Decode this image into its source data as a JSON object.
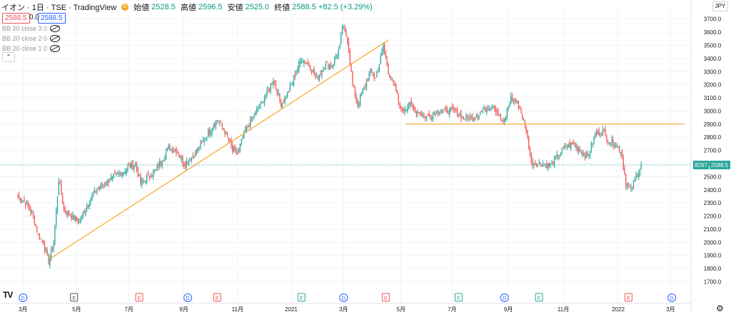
{
  "header": {
    "symbol": "イオン · 1日 · TSE · TradingView",
    "currency_label": "D",
    "ohlc": [
      {
        "k": "始値",
        "v": "2528.5"
      },
      {
        "k": "高値",
        "v": "2596.5"
      },
      {
        "k": "安値",
        "v": "2525.0"
      },
      {
        "k": "終値",
        "v": "2588.5 +82.5 (+3.29%)"
      }
    ],
    "sell_price": "2588.5",
    "spread": "0.0",
    "buy_price": "2588.5"
  },
  "indicators": [
    {
      "label": "BB 20 close 3 0"
    },
    {
      "label": "BB 20 close 2 0"
    },
    {
      "label": "BB 20 close 1 0"
    }
  ],
  "axis": {
    "currency": "JPY",
    "last_volume_tag": "8267",
    "last_price_tag": "2588.5"
  },
  "chart_data": {
    "type": "candlestick",
    "title": "イオン · 1日 · TSE · TradingView",
    "ylim": [
      1670,
      3780
    ],
    "y_ticks": [
      1700,
      1800,
      1900,
      2000,
      2100,
      2200,
      2300,
      2400,
      2500,
      2600,
      2700,
      2800,
      2900,
      3000,
      3100,
      3200,
      3300,
      3400,
      3500,
      3600,
      3700
    ],
    "y_tick_labels": [
      "1700.0",
      "1800.0",
      "1900.0",
      "2000.0",
      "2100.0",
      "2200.0",
      "2300.0",
      "2400.0",
      "2500.0",
      "2600.0",
      "2700.0",
      "2800.0",
      "2900.0",
      "3000.0",
      "3100.0",
      "3200.0",
      "3300.0",
      "3400.0",
      "3500.0",
      "3600.0",
      "3700.0"
    ],
    "x_ticks": [
      {
        "label": "3月",
        "t": 4
      },
      {
        "label": "5月",
        "t": 46
      },
      {
        "label": "7月",
        "t": 87
      },
      {
        "label": "9月",
        "t": 130
      },
      {
        "label": "11月",
        "t": 172
      },
      {
        "label": "2021",
        "t": 214
      },
      {
        "label": "3月",
        "t": 255
      },
      {
        "label": "5月",
        "t": 300
      },
      {
        "label": "7月",
        "t": 340
      },
      {
        "label": "9月",
        "t": 384
      },
      {
        "label": "11月",
        "t": 427
      },
      {
        "label": "2022",
        "t": 470
      },
      {
        "label": "3月",
        "t": 511
      }
    ],
    "t_range": [
      -14,
      527
    ],
    "price_anchors": [
      [
        0,
        2350
      ],
      [
        6,
        2300
      ],
      [
        12,
        2200
      ],
      [
        16,
        2050
      ],
      [
        20,
        2000
      ],
      [
        24,
        1850
      ],
      [
        28,
        2000
      ],
      [
        32,
        2480
      ],
      [
        36,
        2250
      ],
      [
        42,
        2200
      ],
      [
        48,
        2150
      ],
      [
        54,
        2280
      ],
      [
        60,
        2380
      ],
      [
        68,
        2450
      ],
      [
        76,
        2500
      ],
      [
        84,
        2550
      ],
      [
        92,
        2600
      ],
      [
        96,
        2450
      ],
      [
        102,
        2500
      ],
      [
        108,
        2550
      ],
      [
        114,
        2650
      ],
      [
        118,
        2720
      ],
      [
        124,
        2700
      ],
      [
        130,
        2600
      ],
      [
        136,
        2650
      ],
      [
        142,
        2720
      ],
      [
        150,
        2850
      ],
      [
        156,
        2930
      ],
      [
        162,
        2850
      ],
      [
        168,
        2700
      ],
      [
        172,
        2680
      ],
      [
        178,
        2850
      ],
      [
        184,
        2950
      ],
      [
        190,
        3050
      ],
      [
        196,
        3150
      ],
      [
        200,
        3250
      ],
      [
        206,
        3050
      ],
      [
        212,
        3150
      ],
      [
        218,
        3300
      ],
      [
        222,
        3400
      ],
      [
        228,
        3350
      ],
      [
        234,
        3250
      ],
      [
        240,
        3350
      ],
      [
        246,
        3350
      ],
      [
        252,
        3480
      ],
      [
        254,
        3650
      ],
      [
        258,
        3550
      ],
      [
        262,
        3200
      ],
      [
        266,
        3050
      ],
      [
        272,
        3200
      ],
      [
        276,
        3300
      ],
      [
        280,
        3250
      ],
      [
        284,
        3400
      ],
      [
        286,
        3500
      ],
      [
        290,
        3300
      ],
      [
        296,
        3150
      ],
      [
        300,
        3000
      ],
      [
        306,
        3050
      ],
      [
        312,
        3000
      ],
      [
        320,
        2950
      ],
      [
        328,
        3000
      ],
      [
        336,
        3000
      ],
      [
        342,
        3000
      ],
      [
        348,
        2950
      ],
      [
        356,
        2950
      ],
      [
        364,
        3000
      ],
      [
        372,
        3050
      ],
      [
        380,
        2900
      ],
      [
        386,
        3100
      ],
      [
        392,
        3050
      ],
      [
        398,
        2850
      ],
      [
        402,
        2600
      ],
      [
        410,
        2600
      ],
      [
        416,
        2580
      ],
      [
        422,
        2650
      ],
      [
        428,
        2720
      ],
      [
        434,
        2750
      ],
      [
        440,
        2700
      ],
      [
        446,
        2650
      ],
      [
        452,
        2820
      ],
      [
        458,
        2850
      ],
      [
        462,
        2780
      ],
      [
        468,
        2750
      ],
      [
        472,
        2700
      ],
      [
        476,
        2450
      ],
      [
        480,
        2400
      ],
      [
        484,
        2500
      ],
      [
        488,
        2588.5
      ]
    ],
    "last_price": 2588.5,
    "trend_line": {
      "from": [
        26,
        1880
      ],
      "to": [
        290,
        3540
      ]
    },
    "support_line": {
      "value": 2900,
      "from_t": 304,
      "to_t": 522
    },
    "events": [
      {
        "type": "D",
        "t": 4
      },
      {
        "type": "E",
        "t": 44
      },
      {
        "type": "E",
        "t": 95
      },
      {
        "type": "D",
        "t": 133
      },
      {
        "type": "E",
        "t": 156
      },
      {
        "type": "E",
        "t": 222
      },
      {
        "type": "D",
        "t": 255
      },
      {
        "type": "E",
        "t": 288
      },
      {
        "type": "E",
        "t": 345
      },
      {
        "type": "D",
        "t": 381
      },
      {
        "type": "E",
        "t": 408
      },
      {
        "type": "E",
        "t": 478
      },
      {
        "type": "D",
        "t": 512
      }
    ],
    "colors": {
      "up": "#26a69a",
      "down": "#ef5350",
      "trend_line": "#f5a623",
      "support_line": "#f5a623",
      "last_price": "#26a69a",
      "grid": "#f0f3fa",
      "dividend": "#2962ff",
      "earnings_up": "#26a69a",
      "earnings_down": "#ef5350"
    }
  }
}
